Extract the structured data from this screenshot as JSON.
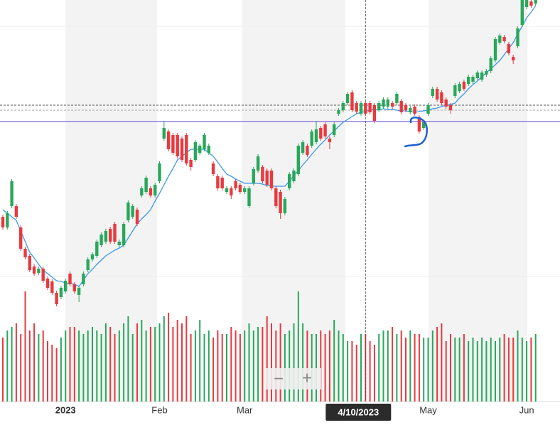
{
  "chart_data": {
    "type": "candlestick",
    "categories": [
      null,
      null,
      null,
      null,
      null,
      null,
      null,
      null,
      null,
      null,
      null,
      null,
      null,
      null,
      "2023",
      null,
      null,
      null,
      null,
      null,
      null,
      null,
      null,
      null,
      null,
      null,
      null,
      null,
      null,
      null,
      null,
      null,
      null,
      null,
      null,
      "Feb",
      null,
      null,
      null,
      null,
      null,
      null,
      null,
      null,
      null,
      null,
      null,
      null,
      null,
      null,
      null,
      null,
      null,
      null,
      "Mar",
      null,
      null,
      null,
      null,
      null,
      null,
      null,
      null,
      null,
      null,
      null,
      null,
      null,
      null,
      null,
      null,
      null,
      null,
      null,
      null,
      null,
      null,
      null,
      null,
      null,
      null,
      null,
      null,
      null,
      null,
      null,
      null,
      null,
      null,
      null,
      null,
      null,
      null,
      null,
      null,
      "May",
      null,
      null,
      null,
      null,
      null,
      null,
      null,
      null,
      null,
      null,
      null,
      null,
      null,
      null,
      null,
      null,
      null,
      null,
      null,
      null,
      null,
      "Jun",
      null,
      null
    ],
    "open": [
      295,
      280,
      310,
      310,
      280,
      250,
      240,
      225,
      216,
      222,
      208,
      204,
      188,
      182,
      190,
      215,
      200,
      185,
      200,
      220,
      235,
      240,
      255,
      260,
      278,
      285,
      255,
      255,
      290,
      295,
      305,
      325,
      330,
      335,
      325,
      345,
      405,
      415,
      410,
      410,
      405,
      410,
      375,
      375,
      385,
      390,
      385,
      370,
      352,
      350,
      330,
      335,
      345,
      340,
      330,
      310,
      342,
      360,
      365,
      360,
      360,
      335,
      330,
      300,
      335,
      345,
      355,
      385,
      395,
      395,
      400,
      420,
      425,
      405,
      410,
      440,
      445,
      455,
      470,
      455,
      440,
      455,
      455,
      452,
      445,
      450,
      450,
      455,
      455,
      458,
      452,
      442,
      450,
      435,
      420,
      440,
      465,
      475,
      470,
      460,
      452,
      465,
      472,
      485,
      482,
      485,
      490,
      488,
      495,
      500,
      515,
      540,
      548,
      538,
      520,
      535,
      565,
      590,
      598,
      595
    ],
    "high": [
      298,
      303,
      348,
      313,
      283,
      253,
      243,
      228,
      225,
      225,
      211,
      207,
      191,
      198,
      208,
      218,
      203,
      198,
      218,
      238,
      245,
      263,
      273,
      278,
      281,
      288,
      263,
      288,
      318,
      313,
      308,
      338,
      353,
      338,
      343,
      373,
      430,
      418,
      413,
      413,
      408,
      413,
      378,
      403,
      398,
      413,
      398,
      373,
      355,
      353,
      338,
      338,
      348,
      343,
      338,
      338,
      365,
      383,
      368,
      363,
      363,
      338,
      333,
      323,
      358,
      363,
      398,
      403,
      398,
      418,
      430,
      423,
      428,
      408,
      428,
      448,
      458,
      471,
      473,
      458,
      458,
      458,
      458,
      455,
      458,
      463,
      463,
      458,
      471,
      461,
      455,
      451,
      453,
      438,
      431,
      455,
      478,
      478,
      473,
      463,
      455,
      483,
      485,
      488,
      495,
      495,
      501,
      501,
      503,
      521,
      548,
      553,
      551,
      541,
      523,
      563,
      603,
      613,
      601,
      603
    ],
    "low": [
      277,
      277,
      307,
      292,
      247,
      235,
      217,
      212,
      213,
      202,
      192,
      185,
      169,
      179,
      187,
      197,
      187,
      175,
      197,
      217,
      232,
      237,
      252,
      257,
      257,
      257,
      252,
      252,
      287,
      292,
      282,
      322,
      327,
      322,
      322,
      342,
      402,
      387,
      382,
      377,
      372,
      367,
      360,
      372,
      382,
      387,
      382,
      352,
      332,
      332,
      327,
      320,
      332,
      327,
      327,
      307,
      339,
      357,
      342,
      337,
      332,
      307,
      292,
      297,
      332,
      342,
      352,
      382,
      379,
      392,
      397,
      402,
      405,
      390,
      407,
      437,
      442,
      452,
      442,
      440,
      437,
      437,
      439,
      427,
      442,
      447,
      447,
      447,
      452,
      439,
      442,
      439,
      437,
      412,
      417,
      437,
      462,
      457,
      452,
      447,
      440,
      462,
      469,
      472,
      479,
      482,
      487,
      485,
      492,
      497,
      512,
      537,
      539,
      522,
      510,
      532,
      562,
      587,
      589,
      592
    ],
    "close": [
      280,
      300,
      345,
      295,
      250,
      238,
      220,
      215,
      222,
      205,
      195,
      188,
      172,
      195,
      205,
      200,
      190,
      195,
      215,
      235,
      242,
      260,
      270,
      275,
      260,
      260,
      260,
      285,
      315,
      310,
      285,
      335,
      350,
      325,
      340,
      370,
      420,
      390,
      385,
      380,
      375,
      370,
      365,
      400,
      395,
      410,
      395,
      355,
      335,
      335,
      335,
      325,
      335,
      330,
      335,
      335,
      362,
      380,
      345,
      340,
      335,
      310,
      300,
      320,
      355,
      360,
      395,
      400,
      382,
      415,
      418,
      405,
      408,
      400,
      425,
      445,
      455,
      468,
      445,
      443,
      455,
      440,
      442,
      430,
      455,
      460,
      460,
      450,
      468,
      442,
      445,
      448,
      440,
      415,
      428,
      452,
      475,
      460,
      455,
      450,
      445,
      480,
      482,
      475,
      492,
      492,
      498,
      498,
      500,
      518,
      545,
      550,
      542,
      525,
      515,
      560,
      600,
      610,
      592,
      600
    ],
    "up_color": "#27a85a",
    "down_color": "#e8393f",
    "ylim": [
      0,
      600
    ],
    "volume": {
      "values": [
        90,
        100,
        105,
        110,
        95,
        155,
        100,
        110,
        95,
        100,
        85,
        80,
        75,
        90,
        100,
        105,
        105,
        100,
        95,
        100,
        105,
        100,
        95,
        110,
        105,
        95,
        100,
        110,
        120,
        95,
        110,
        115,
        100,
        105,
        105,
        110,
        120,
        125,
        105,
        115,
        110,
        120,
        95,
        100,
        115,
        95,
        100,
        90,
        100,
        95,
        95,
        105,
        100,
        95,
        100,
        110,
        100,
        105,
        105,
        120,
        110,
        100,
        110,
        95,
        100,
        110,
        155,
        110,
        100,
        95,
        95,
        100,
        95,
        100,
        115,
        100,
        95,
        85,
        85,
        80,
        95,
        95,
        85,
        80,
        95,
        100,
        100,
        105,
        95,
        100,
        90,
        100,
        95,
        95,
        90,
        90,
        100,
        105,
        110,
        85,
        95,
        90,
        90,
        95,
        85,
        90,
        85,
        90,
        85,
        90,
        85,
        90,
        95,
        90,
        90,
        100,
        90,
        85,
        90,
        95
      ],
      "ylim": [
        0,
        200
      ]
    },
    "moving_average": {
      "color": "#3c98e6",
      "values": [
        305,
        300,
        295,
        290,
        275,
        260,
        245,
        237,
        228,
        220,
        215,
        210,
        205,
        204,
        202,
        201,
        200,
        197,
        206,
        215,
        221,
        228,
        234,
        240,
        244,
        248,
        251,
        255,
        265,
        275,
        285,
        292,
        298,
        305,
        317,
        328,
        340,
        352,
        363,
        375,
        380,
        385,
        390,
        390,
        390,
        390,
        385,
        380,
        372,
        363,
        355,
        352,
        348,
        345,
        342,
        342,
        342,
        342,
        341,
        339,
        338,
        338,
        338,
        338,
        345,
        353,
        360,
        368,
        375,
        383,
        390,
        397,
        403,
        410,
        416,
        422,
        428,
        432,
        436,
        440,
        442,
        443,
        445,
        446,
        446,
        447,
        446,
        446,
        445,
        444,
        444,
        443,
        442,
        443,
        444,
        445,
        447,
        448,
        450,
        452,
        453,
        455,
        462,
        468,
        475,
        481,
        486,
        492,
        498,
        503,
        509,
        515,
        523,
        532,
        540,
        552,
        563,
        575,
        583,
        592
      ]
    },
    "lines": [
      {
        "value": 452,
        "color": "#555555",
        "dash": true
      },
      {
        "value": 445,
        "color": "#aaaaaa",
        "dash": true
      },
      {
        "value": 429,
        "color": "#5a3fd6",
        "dash": false
      }
    ],
    "crosshair": {
      "index": 81,
      "label": "4/10/2023"
    },
    "zoom_controls": [
      "−",
      "+"
    ]
  }
}
